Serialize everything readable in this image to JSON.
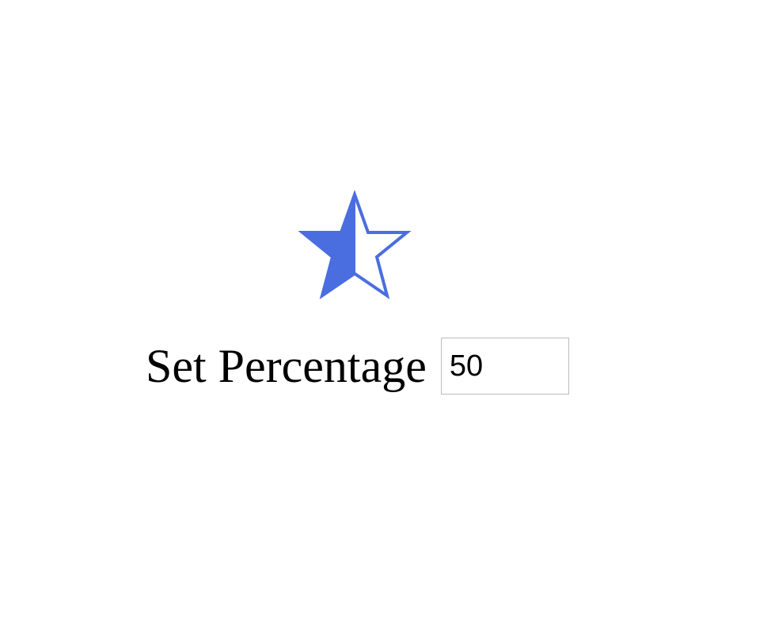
{
  "star": {
    "icon": "star-icon",
    "fill_color": "#4a6ee0",
    "fill_percent": 50
  },
  "control": {
    "label": "Set Percentage",
    "input_value": "50"
  }
}
